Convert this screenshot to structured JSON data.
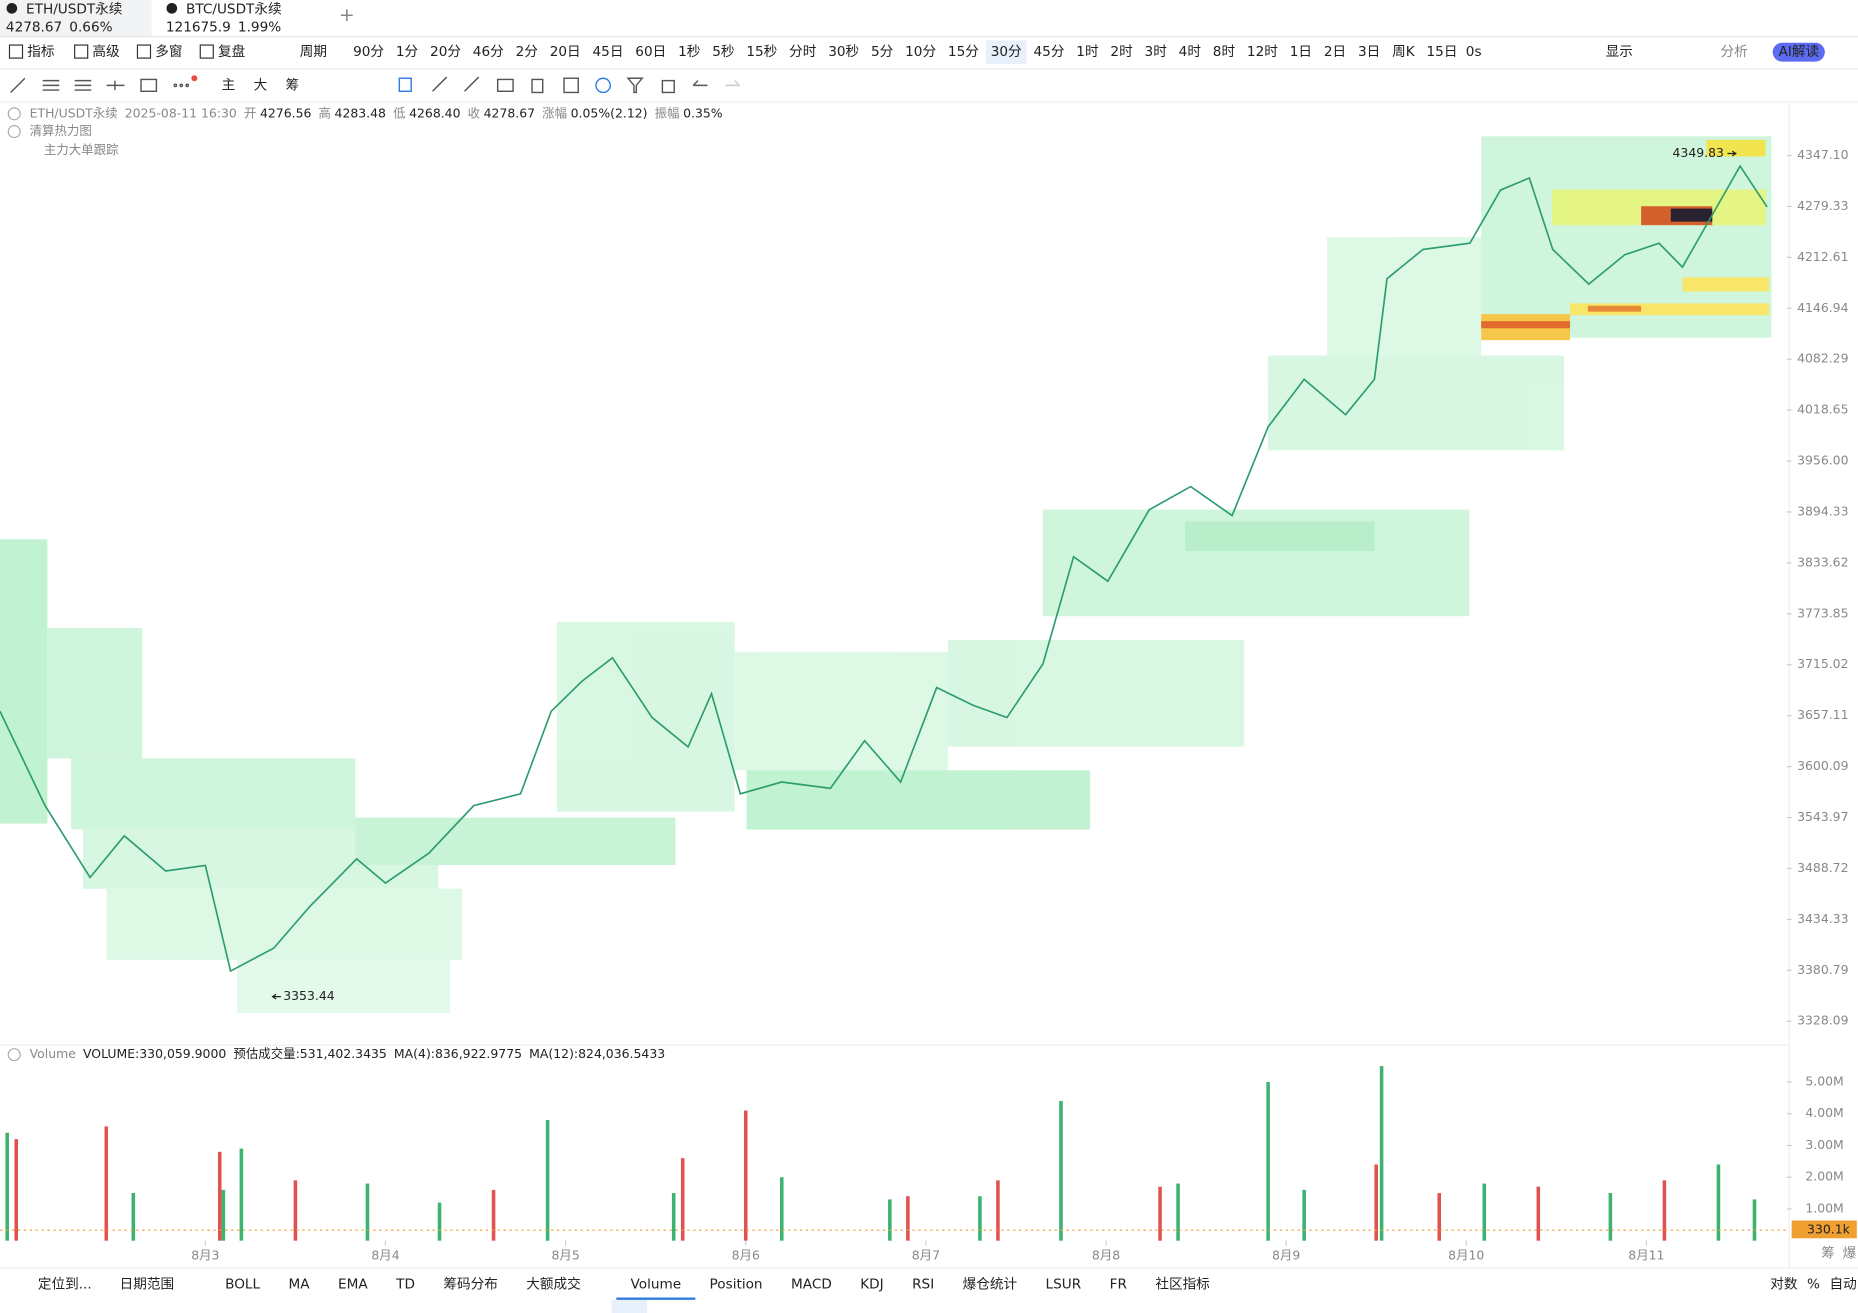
{
  "tabs": [
    {
      "symbol": "ETH/USDT永续",
      "price": "4278.67",
      "change": "0.66%"
    },
    {
      "symbol": "BTC/USDT永续",
      "price": "121675.9",
      "change": "1.99%"
    }
  ],
  "toolbar": {
    "left": [
      "指标",
      "高级",
      "多窗",
      "复盘"
    ],
    "period_menu": "周期",
    "periods": [
      "90分",
      "1分",
      "20分",
      "46分",
      "2分",
      "20日",
      "45日",
      "60日",
      "1秒",
      "5秒",
      "15秒",
      "分时",
      "30秒",
      "5分",
      "10分",
      "15分",
      "30分",
      "45分",
      "1时",
      "2时",
      "3时",
      "4时",
      "8时",
      "12时",
      "1日",
      "2日",
      "3日",
      "周K",
      "15日"
    ],
    "active_period": "30分",
    "right": [
      "0s",
      "显示",
      "分析",
      "AI解读"
    ]
  },
  "drawing_tools": [
    "主",
    "大",
    "筹"
  ],
  "info": {
    "symbol": "ETH/USDT永续",
    "time": "2025-08-11 16:30",
    "fields": [
      {
        "label": "开",
        "value": "4276.56"
      },
      {
        "label": "高",
        "value": "4283.48"
      },
      {
        "label": "低",
        "value": "4268.40"
      },
      {
        "label": "收",
        "value": "4278.67"
      },
      {
        "label": "涨幅",
        "value": "0.05%(2.12)"
      },
      {
        "label": "振幅",
        "value": "0.35%"
      }
    ]
  },
  "overlays": [
    "清算热力图",
    "主力大单跟踪"
  ],
  "volume_info": {
    "name": "Volume",
    "fields": [
      "VOLUME:330,059.9000",
      "预估成交量:531,402.3435",
      "MA(4):836,922.9775",
      "MA(12):824,036.5433"
    ]
  },
  "bottom_tabs": {
    "left": [
      "定位到...",
      "日期范围"
    ],
    "indicators": [
      "BOLL",
      "MA",
      "EMA",
      "TD",
      "筹码分布",
      "大额成交",
      "Volume",
      "Position",
      "MACD",
      "KDJ",
      "RSI",
      "爆仓统计",
      "LSUR",
      "FR",
      "社区指标"
    ],
    "active": "Volume",
    "right": [
      "对数",
      "%",
      "自动"
    ]
  },
  "side_labels": [
    "筹",
    "爆"
  ],
  "chart_data": [
    {
      "type": "line",
      "color": "#2e9d6e",
      "log": true,
      "x": [
        1.86,
        2.11,
        2.36,
        2.55,
        2.78,
        3.0,
        3.14,
        3.38,
        3.58,
        3.84,
        4.0,
        4.24,
        4.49,
        4.75,
        4.92,
        5.09,
        5.26,
        5.48,
        5.68,
        5.81,
        5.97,
        6.2,
        6.47,
        6.66,
        6.86,
        7.06,
        7.26,
        7.45,
        7.65,
        7.82,
        8.01,
        8.24,
        8.47,
        8.7,
        8.9,
        9.1,
        9.33,
        9.49,
        9.56,
        9.76,
        10.02,
        10.19,
        10.35,
        10.48,
        10.68,
        10.88,
        11.07,
        11.2,
        11.37,
        11.52,
        11.67
      ],
      "values": [
        3662,
        3557,
        3479,
        3524,
        3486,
        3492,
        3380,
        3404,
        3448,
        3499,
        3473,
        3505,
        3557,
        3570,
        3662,
        3696,
        3723,
        3655,
        3622,
        3682,
        3570,
        3583,
        3576,
        3629,
        3583,
        3689,
        3669,
        3655,
        3716,
        3841,
        3812,
        3897,
        3925,
        3890,
        3998,
        4057,
        4013,
        4057,
        4185,
        4223,
        4231,
        4301,
        4317,
        4223,
        4178,
        4216,
        4231,
        4200,
        4270,
        4333,
        4278.67
      ],
      "xlim": [
        1.86,
        11.78
      ],
      "ylim": [
        3306,
        4397
      ],
      "yticks": [
        3328.09,
        3380.79,
        3434.33,
        3488.72,
        3543.97,
        3600.09,
        3657.11,
        3715.02,
        3773.85,
        3833.62,
        3894.33,
        {
          "value": 3956,
          "label": "3956.00"
        },
        4018.65,
        4082.29,
        4146.94,
        4212.61,
        4279.33,
        {
          "value": 4347.1,
          "label": "4347.10"
        }
      ],
      "high": {
        "x": 11.47,
        "value": 4349.83
      },
      "low": {
        "x": 3.36,
        "value": 3353.44
      }
    },
    {
      "type": "bar",
      "series": [
        {
          "color": "#3cb371",
          "x": [
            1.9,
            2.6,
            3.1,
            3.2,
            3.9,
            4.3,
            4.9,
            5.6,
            6.2,
            6.8,
            7.3,
            7.75,
            8.4,
            8.9,
            9.1,
            9.53,
            10.1,
            10.8,
            11.4,
            11.6
          ],
          "values": [
            3.4,
            1.5,
            1.6,
            2.9,
            1.8,
            1.2,
            3.8,
            1.5,
            2.0,
            1.3,
            1.4,
            4.4,
            1.8,
            5.0,
            1.6,
            5.5,
            1.8,
            1.5,
            2.4,
            1.3
          ]
        },
        {
          "color": "#e0524f",
          "x": [
            1.95,
            2.45,
            3.08,
            3.5,
            4.6,
            5.65,
            6.0,
            6.9,
            7.4,
            8.3,
            9.5,
            9.85,
            10.4,
            11.1
          ],
          "values": [
            3.2,
            3.6,
            2.8,
            1.9,
            1.6,
            2.6,
            4.1,
            1.4,
            1.9,
            1.7,
            2.4,
            1.5,
            1.7,
            1.9
          ]
        }
      ],
      "xlim": [
        1.86,
        11.78
      ],
      "ylim": [
        0,
        5.6
      ],
      "yticks": [
        {
          "value": 1,
          "label": "1.00M"
        },
        {
          "value": 2,
          "label": "2.00M"
        },
        {
          "value": 3,
          "label": "3.00M"
        },
        {
          "value": 4,
          "label": "4.00M"
        },
        {
          "value": 5,
          "label": "5.00M"
        }
      ],
      "xticks": [
        {
          "value": 3,
          "label": "8月3"
        },
        {
          "value": 4,
          "label": "8月4"
        },
        {
          "value": 5,
          "label": "8月5"
        },
        {
          "value": 6,
          "label": "8月6"
        },
        {
          "value": 7,
          "label": "8月7"
        },
        {
          "value": 8,
          "label": "8月8"
        },
        {
          "value": 9,
          "label": "8月9"
        },
        {
          "value": 10,
          "label": "8月10"
        },
        {
          "value": 11,
          "label": "8月11"
        }
      ],
      "last_value": 0.3301,
      "last_label": "330.1k"
    }
  ]
}
